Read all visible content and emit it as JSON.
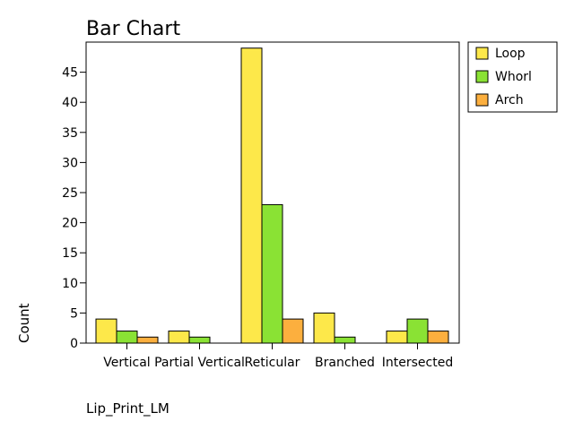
{
  "chart_data": {
    "type": "bar",
    "title": "Bar Chart",
    "xlabel": "Lip_Print_LM",
    "ylabel": "Count",
    "categories": [
      "Vertical",
      "Partial Vertical",
      "Reticular",
      "Branched",
      "Intersected"
    ],
    "series": [
      {
        "name": "Loop",
        "color": "#fde84a",
        "values": [
          4,
          2,
          49,
          5,
          2
        ]
      },
      {
        "name": "Whorl",
        "color": "#8ae234",
        "values": [
          2,
          1,
          23,
          1,
          4
        ]
      },
      {
        "name": "Arch",
        "color": "#fcaf3e",
        "values": [
          1,
          0,
          4,
          0,
          2
        ]
      }
    ],
    "yticks": [
      0,
      5,
      10,
      15,
      20,
      25,
      30,
      35,
      40,
      45
    ],
    "ylim": [
      0,
      50
    ],
    "grid": false,
    "legend_position": "right-top"
  }
}
